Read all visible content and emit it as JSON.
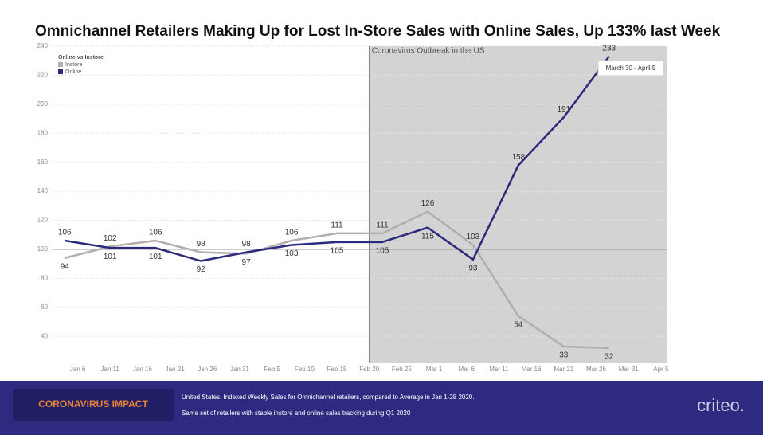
{
  "chart_data": {
    "type": "line",
    "title": "Omnichannel Retailers Making Up for Lost In-Store Sales with Online Sales, Up 133% last Week",
    "legend_title": "Online vs Instore",
    "annotation": "Coronavirus Outbreak in the US",
    "shade_start": "Feb 20",
    "tooltip": "March 30 - April 5",
    "reference_line": 100,
    "x": [
      "Jan 4",
      "Jan 11",
      "Jan 18",
      "Jan 25",
      "Feb 1",
      "Feb 8",
      "Feb 15",
      "Feb 22",
      "Feb 29",
      "Mar 7",
      "Mar 14",
      "Mar 21",
      "Mar 28"
    ],
    "series": [
      {
        "name": "Instore",
        "color": "#b3adad",
        "values": [
          94,
          102,
          106,
          98,
          97,
          106,
          111,
          111,
          126,
          103,
          54,
          33,
          32
        ]
      },
      {
        "name": "Online",
        "color": "#2b2a7c",
        "values": [
          106,
          101,
          101,
          92,
          98,
          103,
          105,
          105,
          115,
          93,
          158,
          191,
          233
        ]
      }
    ],
    "xlim": [
      "Jan 2",
      "Apr 6"
    ],
    "xticks": [
      "Jan 6",
      "Jan 11",
      "Jan 16",
      "Jan 21",
      "Jan 26",
      "Jan 31",
      "Feb 5",
      "Feb 10",
      "Feb 15",
      "Feb 20",
      "Feb 25",
      "Mar 1",
      "Mar 6",
      "Mar 11",
      "Mar 16",
      "Mar 21",
      "Mar 26",
      "Mar 31",
      "Apr 5"
    ],
    "ylim": [
      22,
      240
    ],
    "yticks": [
      40,
      60,
      80,
      100,
      120,
      140,
      160,
      180,
      200,
      220,
      240
    ],
    "grid": true
  },
  "footer": {
    "badge": "CORONAVIRUS IMPACT",
    "line1": "United States.  Indexed Weekly Sales for Omnichannel retailers, compared to Average in Jan 1-28 2020.",
    "line2": "Same set of retailers with stable instore and online sales tracking during Q1 2020",
    "logo": "criteo."
  }
}
